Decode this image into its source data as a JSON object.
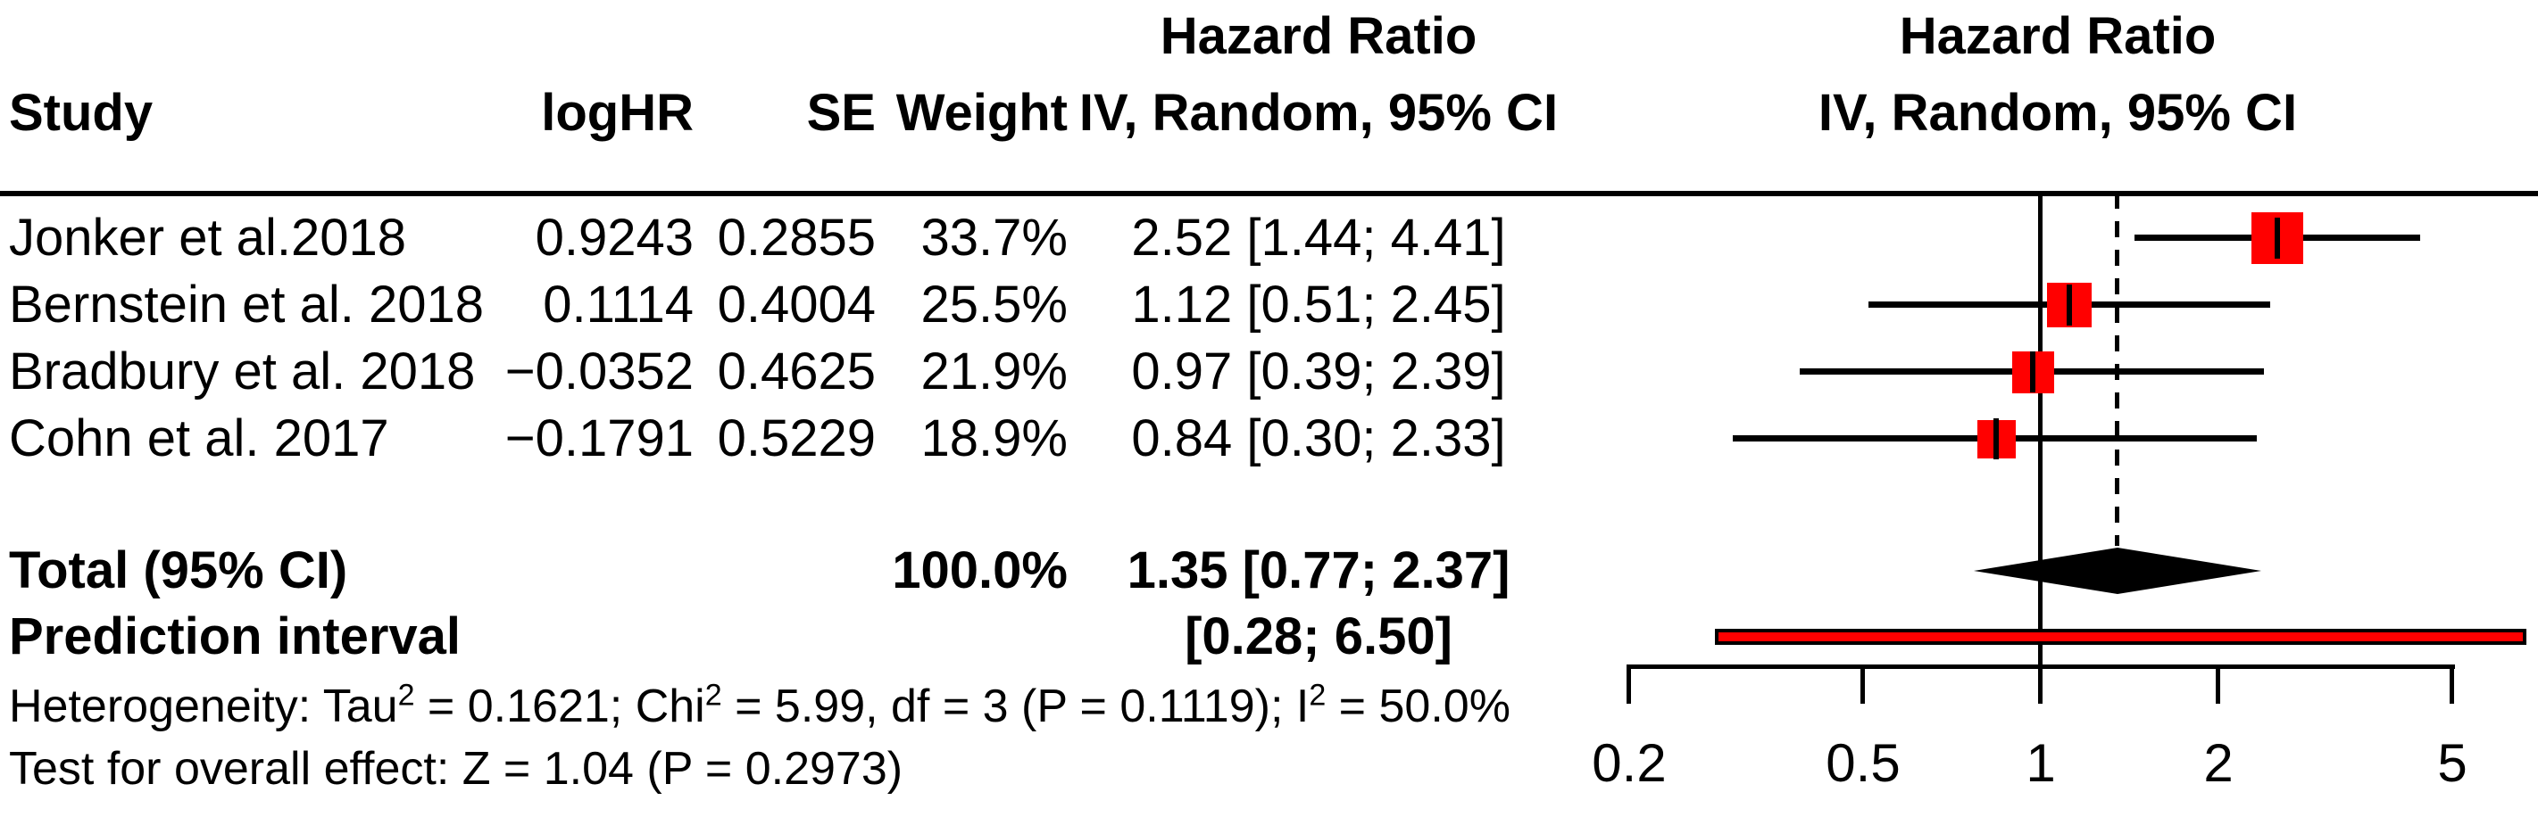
{
  "header": {
    "col_study": "Study",
    "col_loghr": "logHR",
    "col_se": "SE",
    "col_weight": "Weight",
    "hr_text_title": "Hazard Ratio",
    "hr_text_subtitle": "IV, Random, 95% CI",
    "hr_plot_title": "Hazard Ratio",
    "hr_plot_subtitle": "IV, Random, 95% CI"
  },
  "table": {
    "rows": [
      {
        "study": "Jonker et al.2018",
        "loghr": "0.9243",
        "se": "0.2855",
        "weight": "33.7%",
        "hr_ci": "2.52 [1.44; 4.41]"
      },
      {
        "study": "Bernstein et al. 2018",
        "loghr": "0.1114",
        "se": "0.4004",
        "weight": "25.5%",
        "hr_ci": "1.12 [0.51; 2.45]"
      },
      {
        "study": "Bradbury et al. 2018",
        "loghr": "−0.0352",
        "se": "0.4625",
        "weight": "21.9%",
        "hr_ci": "0.97 [0.39; 2.39]"
      },
      {
        "study": "Cohn et al. 2017",
        "loghr": "−0.1791",
        "se": "0.5229",
        "weight": "18.9%",
        "hr_ci": "0.84 [0.30; 2.33]"
      }
    ],
    "total": {
      "label": "Total (95% CI)",
      "weight": "100.0%",
      "hr_ci": "1.35 [0.77; 2.37]"
    },
    "prediction": {
      "label": "Prediction interval",
      "hr_ci": "[0.28; 6.50]"
    }
  },
  "footer": {
    "het_1": "Heterogeneity: Tau",
    "het_sup1": "2",
    "het_2": " = 0.1621; Chi",
    "het_sup2": "2",
    "het_3": " = 5.99, df = 3 (P = 0.1119); I",
    "het_sup3": "2",
    "het_4": " = 50.0%",
    "overall": "Test for overall effect: Z = 1.04 (P = 0.2973)"
  },
  "colors": {
    "marker_red": "#FF0000",
    "ink_black": "#000000"
  },
  "chart_data": {
    "type": "scatter",
    "subtype": "forest-plot",
    "title": "Hazard Ratio",
    "model_label": "IV, Random, 95% CI",
    "x_scale": "log",
    "x_range": [
      0.2,
      5
    ],
    "x_ticks": [
      0.2,
      0.5,
      1,
      2,
      5
    ],
    "x_tick_labels": [
      "0.2",
      "0.5",
      "1",
      "2",
      "5"
    ],
    "reference_line_hr": 1,
    "pooled_dashed_line_hr": 1.35,
    "studies": [
      {
        "name": "Jonker et al.2018",
        "logHR": 0.9243,
        "SE": 0.2855,
        "weight_pct": 33.7,
        "hr": 2.52,
        "ci_low": 1.44,
        "ci_high": 4.41
      },
      {
        "name": "Bernstein et al. 2018",
        "logHR": 0.1114,
        "SE": 0.4004,
        "weight_pct": 25.5,
        "hr": 1.12,
        "ci_low": 0.51,
        "ci_high": 2.45
      },
      {
        "name": "Bradbury et al. 2018",
        "logHR": -0.0352,
        "SE": 0.4625,
        "weight_pct": 21.9,
        "hr": 0.97,
        "ci_low": 0.39,
        "ci_high": 2.39
      },
      {
        "name": "Cohn et al. 2017",
        "logHR": -0.1791,
        "SE": 0.5229,
        "weight_pct": 18.9,
        "hr": 0.84,
        "ci_low": 0.3,
        "ci_high": 2.33
      }
    ],
    "total": {
      "label": "Total (95% CI)",
      "hr": 1.35,
      "ci_low": 0.77,
      "ci_high": 2.37,
      "weight_pct": 100.0
    },
    "prediction_interval": {
      "low": 0.28,
      "high": 6.5
    },
    "heterogeneity": {
      "tau2": 0.1621,
      "chi2": 5.99,
      "df": 3,
      "p": 0.1119,
      "i2_pct": 50.0
    },
    "overall_effect_test": {
      "z": 1.04,
      "p": 0.2973
    }
  }
}
